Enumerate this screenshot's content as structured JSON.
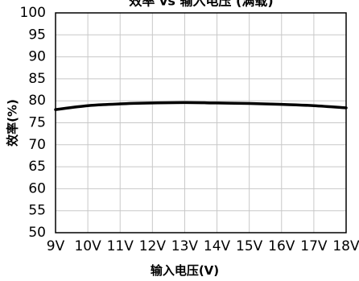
{
  "chart_data": {
    "type": "line",
    "title": "效率 vs 输入电压 (满载)",
    "xlabel": "输入电压(V)",
    "ylabel": "效率(%)",
    "x": [
      9,
      10,
      11,
      12,
      13,
      14,
      15,
      16,
      17,
      18
    ],
    "x_tick_labels": [
      "9V",
      "10V",
      "11V",
      "12V",
      "13V",
      "14V",
      "15V",
      "16V",
      "17V",
      "18V"
    ],
    "xlim": [
      9,
      18
    ],
    "ylim": [
      50,
      100
    ],
    "y_ticks": [
      50,
      55,
      60,
      65,
      70,
      75,
      80,
      85,
      90,
      95,
      100
    ],
    "grid": true,
    "series": [
      {
        "values": [
          78.0,
          78.9,
          79.3,
          79.5,
          79.6,
          79.5,
          79.4,
          79.2,
          78.9,
          78.4
        ]
      }
    ],
    "colors": {
      "line": "#000000",
      "grid": "#c8c8c8",
      "axis": "#000000"
    }
  }
}
